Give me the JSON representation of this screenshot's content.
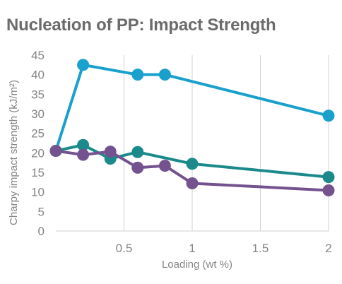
{
  "title": "Nucleation of PP: Impact Strength",
  "chart_data": {
    "type": "line",
    "title": "Nucleation of PP: Impact Strength",
    "xlabel": "Loading (wt %)",
    "ylabel": "Charpy impact strength (kJ/m²)",
    "xlim": [
      0,
      2
    ],
    "ylim": [
      0,
      45
    ],
    "x_ticks": [
      0.5,
      1,
      1.5,
      2
    ],
    "x_tick_labels": [
      "0.5",
      "1",
      "1.5",
      "2"
    ],
    "y_ticks": [
      0,
      5,
      10,
      15,
      20,
      25,
      30,
      35,
      40,
      45
    ],
    "y_tick_labels": [
      "0",
      "5",
      "10",
      "15",
      "20",
      "25",
      "30",
      "35",
      "40",
      "45"
    ],
    "grid": "vertical",
    "series": [
      {
        "color": "#1aa0cc",
        "points": [
          [
            0,
            20.5
          ],
          [
            0.2,
            42.5
          ],
          [
            0.6,
            40
          ],
          [
            0.8,
            40
          ],
          [
            2,
            29.5
          ]
        ]
      },
      {
        "color": "#1c8a8a",
        "points": [
          [
            0,
            20.5
          ],
          [
            0.2,
            22
          ],
          [
            0.4,
            18.5
          ],
          [
            0.6,
            20.2
          ],
          [
            1,
            17.2
          ],
          [
            2,
            13.8
          ]
        ]
      },
      {
        "color": "#74528f",
        "points": [
          [
            0,
            20.5
          ],
          [
            0.2,
            19.5
          ],
          [
            0.4,
            20.3
          ],
          [
            0.6,
            16.2
          ],
          [
            0.8,
            16.7
          ],
          [
            1,
            12.2
          ],
          [
            2,
            10.4
          ]
        ]
      }
    ]
  }
}
